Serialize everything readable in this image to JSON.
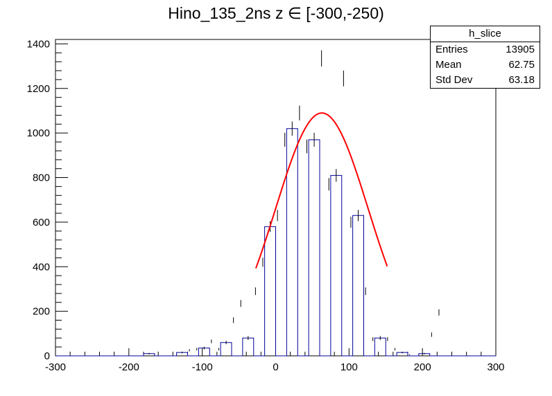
{
  "chart_data": {
    "type": "bar",
    "title": "Hino_135_2ns z  ∈ [-300,-250)",
    "xlabel": "",
    "ylabel": "",
    "xlim": [
      -300,
      300
    ],
    "ylim": [
      0,
      1420
    ],
    "grid": false,
    "x_ticks": [
      -300,
      -200,
      -100,
      0,
      100,
      200,
      300
    ],
    "y_ticks": [
      0,
      200,
      400,
      600,
      800,
      1000,
      1200,
      1400
    ],
    "bin_width": 15,
    "bins": [
      {
        "x0": -180,
        "value": 10
      },
      {
        "x0": -135,
        "value": 15
      },
      {
        "x0": -125,
        "value": 25
      },
      {
        "x0": -115,
        "value": 30
      },
      {
        "x0": -105,
        "value": 35
      },
      {
        "x0": -95,
        "value": 65
      },
      {
        "x0": -85,
        "value": 30
      },
      {
        "x0": -75,
        "value": 60
      },
      {
        "x0": -65,
        "value": 160
      },
      {
        "x0": -55,
        "value": 235
      },
      {
        "x0": -45,
        "value": 80
      },
      {
        "x0": -35,
        "value": 290
      },
      {
        "x0": -25,
        "value": 420
      },
      {
        "x0": -15,
        "value": 580
      },
      {
        "x0": -5,
        "value": 630
      },
      {
        "x0": 5,
        "value": 970
      },
      {
        "x0": 15,
        "value": 1020
      },
      {
        "x0": 25,
        "value": 1090
      },
      {
        "x0": 35,
        "value": 940
      },
      {
        "x0": 45,
        "value": 970
      },
      {
        "x0": 55,
        "value": 1335
      },
      {
        "x0": 65,
        "value": 770
      },
      {
        "x0": 75,
        "value": 810
      },
      {
        "x0": 85,
        "value": 1245
      },
      {
        "x0": 95,
        "value": 600
      },
      {
        "x0": 105,
        "value": 630
      },
      {
        "x0": 115,
        "value": 290
      },
      {
        "x0": 125,
        "value": 75
      },
      {
        "x0": 135,
        "value": 80
      },
      {
        "x0": 145,
        "value": 75
      },
      {
        "x0": 155,
        "value": 30
      },
      {
        "x0": 165,
        "value": 15
      },
      {
        "x0": 175,
        "value": 5
      },
      {
        "x0": 195,
        "value": 10
      },
      {
        "x0": 205,
        "value": 95
      },
      {
        "x0": 215,
        "value": 195
      }
    ],
    "fit": {
      "type": "gaussian",
      "color": "#ff0000",
      "peak": 1090,
      "mean": 63,
      "sigma": 63,
      "x_range": [
        -27,
        152
      ]
    },
    "histogram_color": "#000099",
    "stats_box": {
      "name": "h_slice",
      "rows": [
        {
          "label": "Entries",
          "value": "13905"
        },
        {
          "label": "Mean",
          "value": "62.75"
        },
        {
          "label": "Std Dev",
          "value": "63.18"
        }
      ]
    }
  }
}
